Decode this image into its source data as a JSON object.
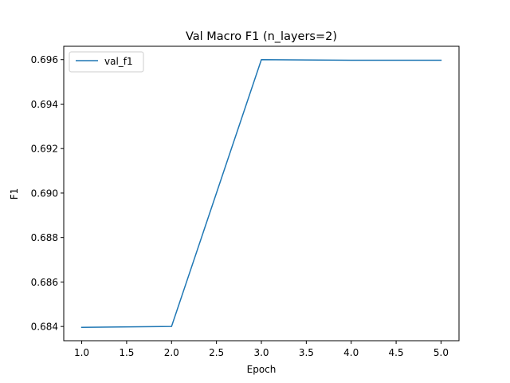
{
  "chart_data": {
    "type": "line",
    "title": "Val Macro F1 (n_layers=2)",
    "xlabel": "Epoch",
    "ylabel": "F1",
    "xlim": [
      0.8,
      5.2
    ],
    "ylim": [
      0.68336,
      0.6966
    ],
    "xticks": [
      1.0,
      1.5,
      2.0,
      2.5,
      3.0,
      3.5,
      4.0,
      4.5,
      5.0
    ],
    "xtick_labels": [
      "1.0",
      "1.5",
      "2.0",
      "2.5",
      "3.0",
      "3.5",
      "4.0",
      "4.5",
      "5.0"
    ],
    "yticks": [
      0.684,
      0.686,
      0.688,
      0.69,
      0.692,
      0.694,
      0.696
    ],
    "ytick_labels": [
      "0.684",
      "0.686",
      "0.688",
      "0.690",
      "0.692",
      "0.694",
      "0.696"
    ],
    "grid": false,
    "legend_position": "upper-left",
    "series": [
      {
        "name": "val_f1",
        "color": "#1f77b4",
        "x": [
          1,
          2,
          3,
          4,
          5
        ],
        "y": [
          0.68396,
          0.684,
          0.696,
          0.69597,
          0.69597
        ]
      }
    ]
  }
}
